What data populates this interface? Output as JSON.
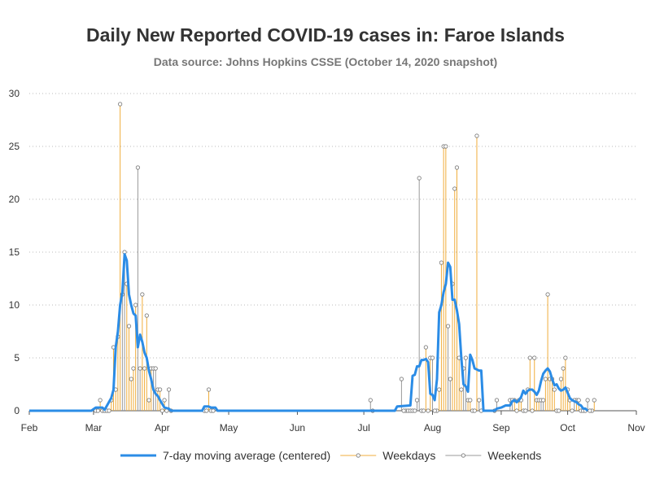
{
  "chart_data": {
    "type": "line",
    "title": "Daily New Reported COVID-19 cases in: Faroe Islands",
    "subtitle": "Data source: Johns Hopkins CSSE (October 14, 2020 snapshot)",
    "x_range": [
      "2020-02-01",
      "2020-11-01"
    ],
    "ylim": [
      0,
      30
    ],
    "y_ticks": [
      0,
      5,
      10,
      15,
      20,
      25,
      30
    ],
    "x_ticks": [
      {
        "date": "2020-02-01",
        "label": "Feb"
      },
      {
        "date": "2020-03-01",
        "label": "Mar"
      },
      {
        "date": "2020-04-01",
        "label": "Apr"
      },
      {
        "date": "2020-05-01",
        "label": "May"
      },
      {
        "date": "2020-06-01",
        "label": "Jun"
      },
      {
        "date": "2020-07-01",
        "label": "Jul"
      },
      {
        "date": "2020-08-01",
        "label": "Aug"
      },
      {
        "date": "2020-09-01",
        "label": "Sep"
      },
      {
        "date": "2020-10-01",
        "label": "Oct"
      },
      {
        "date": "2020-11-01",
        "label": "Nov"
      }
    ],
    "grid": "horizontal-dotted",
    "legend_position": "bottom",
    "series": [
      {
        "name": "Weekdays",
        "kind": "needle",
        "color": "#f0ad3c",
        "points": [
          [
            "2020-03-02",
            0
          ],
          [
            "2020-03-03",
            0
          ],
          [
            "2020-03-04",
            1
          ],
          [
            "2020-03-05",
            0
          ],
          [
            "2020-03-06",
            0
          ],
          [
            "2020-03-09",
            1
          ],
          [
            "2020-03-10",
            6
          ],
          [
            "2020-03-11",
            2
          ],
          [
            "2020-03-12",
            7
          ],
          [
            "2020-03-13",
            29
          ],
          [
            "2020-03-16",
            12
          ],
          [
            "2020-03-17",
            8
          ],
          [
            "2020-03-18",
            3
          ],
          [
            "2020-03-19",
            4
          ],
          [
            "2020-03-20",
            10
          ],
          [
            "2020-03-23",
            11
          ],
          [
            "2020-03-24",
            4
          ],
          [
            "2020-03-25",
            9
          ],
          [
            "2020-03-26",
            1
          ],
          [
            "2020-03-27",
            4
          ],
          [
            "2020-03-30",
            2
          ],
          [
            "2020-03-31",
            2
          ],
          [
            "2020-04-01",
            0
          ],
          [
            "2020-04-02",
            1
          ],
          [
            "2020-04-03",
            0
          ],
          [
            "2020-04-20",
            0
          ],
          [
            "2020-04-21",
            0
          ],
          [
            "2020-04-22",
            2
          ],
          [
            "2020-04-23",
            0
          ],
          [
            "2020-04-24",
            0
          ],
          [
            "2020-07-20",
            0
          ],
          [
            "2020-07-21",
            0
          ],
          [
            "2020-07-22",
            0
          ],
          [
            "2020-07-23",
            0
          ],
          [
            "2020-07-24",
            0
          ],
          [
            "2020-07-27",
            0
          ],
          [
            "2020-07-28",
            0
          ],
          [
            "2020-07-29",
            6
          ],
          [
            "2020-07-30",
            0
          ],
          [
            "2020-07-31",
            5
          ],
          [
            "2020-08-03",
            0
          ],
          [
            "2020-08-04",
            2
          ],
          [
            "2020-08-05",
            14
          ],
          [
            "2020-08-06",
            25
          ],
          [
            "2020-08-07",
            25
          ],
          [
            "2020-08-10",
            12
          ],
          [
            "2020-08-11",
            21
          ],
          [
            "2020-08-12",
            23
          ],
          [
            "2020-08-13",
            5
          ],
          [
            "2020-08-14",
            2
          ],
          [
            "2020-08-17",
            1
          ],
          [
            "2020-08-18",
            1
          ],
          [
            "2020-08-19",
            0
          ],
          [
            "2020-08-20",
            0
          ],
          [
            "2020-08-21",
            26
          ],
          [
            "2020-09-07",
            1
          ],
          [
            "2020-09-08",
            0
          ],
          [
            "2020-09-09",
            1
          ],
          [
            "2020-09-10",
            1
          ],
          [
            "2020-09-11",
            0
          ],
          [
            "2020-09-14",
            5
          ],
          [
            "2020-09-15",
            0
          ],
          [
            "2020-09-16",
            5
          ],
          [
            "2020-09-17",
            1
          ],
          [
            "2020-09-18",
            1
          ],
          [
            "2020-09-21",
            3
          ],
          [
            "2020-09-22",
            11
          ],
          [
            "2020-09-23",
            3
          ],
          [
            "2020-09-24",
            3
          ],
          [
            "2020-09-25",
            2
          ],
          [
            "2020-09-28",
            3
          ],
          [
            "2020-09-29",
            4
          ],
          [
            "2020-09-30",
            5
          ],
          [
            "2020-10-01",
            2
          ],
          [
            "2020-10-02",
            1
          ],
          [
            "2020-10-05",
            1
          ],
          [
            "2020-10-06",
            1
          ],
          [
            "2020-10-07",
            0
          ],
          [
            "2020-10-08",
            0
          ],
          [
            "2020-10-09",
            0
          ],
          [
            "2020-10-12",
            0
          ],
          [
            "2020-10-13",
            1
          ]
        ]
      },
      {
        "name": "Weekends",
        "kind": "needle",
        "color": "#999999",
        "points": [
          [
            "2020-03-07",
            0
          ],
          [
            "2020-03-08",
            0
          ],
          [
            "2020-03-14",
            11
          ],
          [
            "2020-03-15",
            15
          ],
          [
            "2020-03-21",
            23
          ],
          [
            "2020-03-22",
            4
          ],
          [
            "2020-03-28",
            4
          ],
          [
            "2020-03-29",
            4
          ],
          [
            "2020-04-04",
            2
          ],
          [
            "2020-04-05",
            0
          ],
          [
            "2020-07-04",
            1
          ],
          [
            "2020-07-05",
            0
          ],
          [
            "2020-07-18",
            3
          ],
          [
            "2020-07-19",
            0
          ],
          [
            "2020-07-25",
            1
          ],
          [
            "2020-07-26",
            22
          ],
          [
            "2020-08-01",
            5
          ],
          [
            "2020-08-02",
            0
          ],
          [
            "2020-08-08",
            8
          ],
          [
            "2020-08-09",
            3
          ],
          [
            "2020-08-15",
            4
          ],
          [
            "2020-08-16",
            5
          ],
          [
            "2020-08-22",
            1
          ],
          [
            "2020-08-23",
            0
          ],
          [
            "2020-08-29",
            0
          ],
          [
            "2020-08-30",
            1
          ],
          [
            "2020-09-05",
            1
          ],
          [
            "2020-09-06",
            1
          ],
          [
            "2020-09-12",
            0
          ],
          [
            "2020-09-13",
            2
          ],
          [
            "2020-09-19",
            1
          ],
          [
            "2020-09-20",
            1
          ],
          [
            "2020-09-26",
            0
          ],
          [
            "2020-09-27",
            0
          ],
          [
            "2020-10-03",
            0
          ],
          [
            "2020-10-04",
            1
          ],
          [
            "2020-10-10",
            1
          ],
          [
            "2020-10-11",
            0
          ]
        ]
      },
      {
        "name": "7-day moving average (centered)",
        "kind": "line",
        "color": "#2b8ce6",
        "points": [
          [
            "2020-02-01",
            0
          ],
          [
            "2020-02-29",
            0
          ],
          [
            "2020-03-02",
            0.3
          ],
          [
            "2020-03-05",
            0.3
          ],
          [
            "2020-03-06",
            0.1
          ],
          [
            "2020-03-09",
            1.2
          ],
          [
            "2020-03-10",
            2
          ],
          [
            "2020-03-11",
            6
          ],
          [
            "2020-03-12",
            7.5
          ],
          [
            "2020-03-13",
            10
          ],
          [
            "2020-03-14",
            11.2
          ],
          [
            "2020-03-15",
            14.8
          ],
          [
            "2020-03-16",
            14.2
          ],
          [
            "2020-03-17",
            11
          ],
          [
            "2020-03-18",
            10
          ],
          [
            "2020-03-19",
            9.2
          ],
          [
            "2020-03-20",
            9
          ],
          [
            "2020-03-21",
            6
          ],
          [
            "2020-03-22",
            7.2
          ],
          [
            "2020-03-23",
            6.5
          ],
          [
            "2020-03-24",
            5.5
          ],
          [
            "2020-03-25",
            5
          ],
          [
            "2020-03-26",
            3.8
          ],
          [
            "2020-03-27",
            3
          ],
          [
            "2020-03-28",
            2
          ],
          [
            "2020-03-29",
            1.6
          ],
          [
            "2020-03-30",
            1.4
          ],
          [
            "2020-03-31",
            1
          ],
          [
            "2020-04-02",
            0.3
          ],
          [
            "2020-04-04",
            0.2
          ],
          [
            "2020-04-05",
            0
          ],
          [
            "2020-04-19",
            0
          ],
          [
            "2020-04-20",
            0.4
          ],
          [
            "2020-04-22",
            0.4
          ],
          [
            "2020-04-23",
            0.3
          ],
          [
            "2020-04-25",
            0.3
          ],
          [
            "2020-04-26",
            0
          ],
          [
            "2020-07-15",
            0
          ],
          [
            "2020-07-16",
            0.4
          ],
          [
            "2020-07-22",
            0.5
          ],
          [
            "2020-07-23",
            3.3
          ],
          [
            "2020-07-24",
            3.4
          ],
          [
            "2020-07-25",
            4.2
          ],
          [
            "2020-07-26",
            4.2
          ],
          [
            "2020-07-27",
            4.8
          ],
          [
            "2020-07-28",
            4.8
          ],
          [
            "2020-07-29",
            4.9
          ],
          [
            "2020-07-30",
            4.6
          ],
          [
            "2020-07-31",
            1.6
          ],
          [
            "2020-08-01",
            1.5
          ],
          [
            "2020-08-02",
            1
          ],
          [
            "2020-08-03",
            3
          ],
          [
            "2020-08-04",
            9.3
          ],
          [
            "2020-08-05",
            10
          ],
          [
            "2020-08-06",
            11.2
          ],
          [
            "2020-08-07",
            12
          ],
          [
            "2020-08-08",
            14
          ],
          [
            "2020-08-09",
            13.6
          ],
          [
            "2020-08-10",
            10.5
          ],
          [
            "2020-08-11",
            10.5
          ],
          [
            "2020-08-12",
            9.5
          ],
          [
            "2020-08-13",
            8.2
          ],
          [
            "2020-08-14",
            5
          ],
          [
            "2020-08-15",
            2.5
          ],
          [
            "2020-08-16",
            2.3
          ],
          [
            "2020-08-17",
            1.8
          ],
          [
            "2020-08-18",
            5.3
          ],
          [
            "2020-08-19",
            4.8
          ],
          [
            "2020-08-20",
            4
          ],
          [
            "2020-08-21",
            3.9
          ],
          [
            "2020-08-22",
            3.8
          ],
          [
            "2020-08-23",
            3.8
          ],
          [
            "2020-08-24",
            0
          ],
          [
            "2020-08-29",
            0
          ],
          [
            "2020-08-30",
            0.2
          ],
          [
            "2020-09-01",
            0.3
          ],
          [
            "2020-09-03",
            0.5
          ],
          [
            "2020-09-05",
            0.5
          ],
          [
            "2020-09-06",
            0.9
          ],
          [
            "2020-09-07",
            1
          ],
          [
            "2020-09-08",
            0.8
          ],
          [
            "2020-09-09",
            1
          ],
          [
            "2020-09-10",
            1.3
          ],
          [
            "2020-09-11",
            1.9
          ],
          [
            "2020-09-12",
            1.6
          ],
          [
            "2020-09-13",
            1.9
          ],
          [
            "2020-09-14",
            2
          ],
          [
            "2020-09-15",
            2
          ],
          [
            "2020-09-16",
            1.8
          ],
          [
            "2020-09-17",
            1.5
          ],
          [
            "2020-09-18",
            1.9
          ],
          [
            "2020-09-19",
            2.8
          ],
          [
            "2020-09-20",
            3.5
          ],
          [
            "2020-09-21",
            3.8
          ],
          [
            "2020-09-22",
            4
          ],
          [
            "2020-09-23",
            3.7
          ],
          [
            "2020-09-24",
            3
          ],
          [
            "2020-09-25",
            2.4
          ],
          [
            "2020-09-26",
            2.5
          ],
          [
            "2020-09-27",
            2.1
          ],
          [
            "2020-09-28",
            1.9
          ],
          [
            "2020-09-29",
            2
          ],
          [
            "2020-09-30",
            2.2
          ],
          [
            "2020-10-01",
            1.7
          ],
          [
            "2020-10-02",
            1.2
          ],
          [
            "2020-10-03",
            1
          ],
          [
            "2020-10-04",
            0.9
          ],
          [
            "2020-10-05",
            0.8
          ],
          [
            "2020-10-06",
            0.6
          ],
          [
            "2020-10-07",
            0.5
          ],
          [
            "2020-10-08",
            0.2
          ],
          [
            "2020-10-09",
            0.2
          ],
          [
            "2020-10-10",
            0
          ]
        ]
      }
    ],
    "legend": [
      {
        "label": "7-day moving average (centered)",
        "style": "line",
        "color": "#2b8ce6"
      },
      {
        "label": "Weekdays",
        "style": "needle",
        "color": "#f0ad3c"
      },
      {
        "label": "Weekends",
        "style": "needle",
        "color": "#999999"
      }
    ]
  }
}
